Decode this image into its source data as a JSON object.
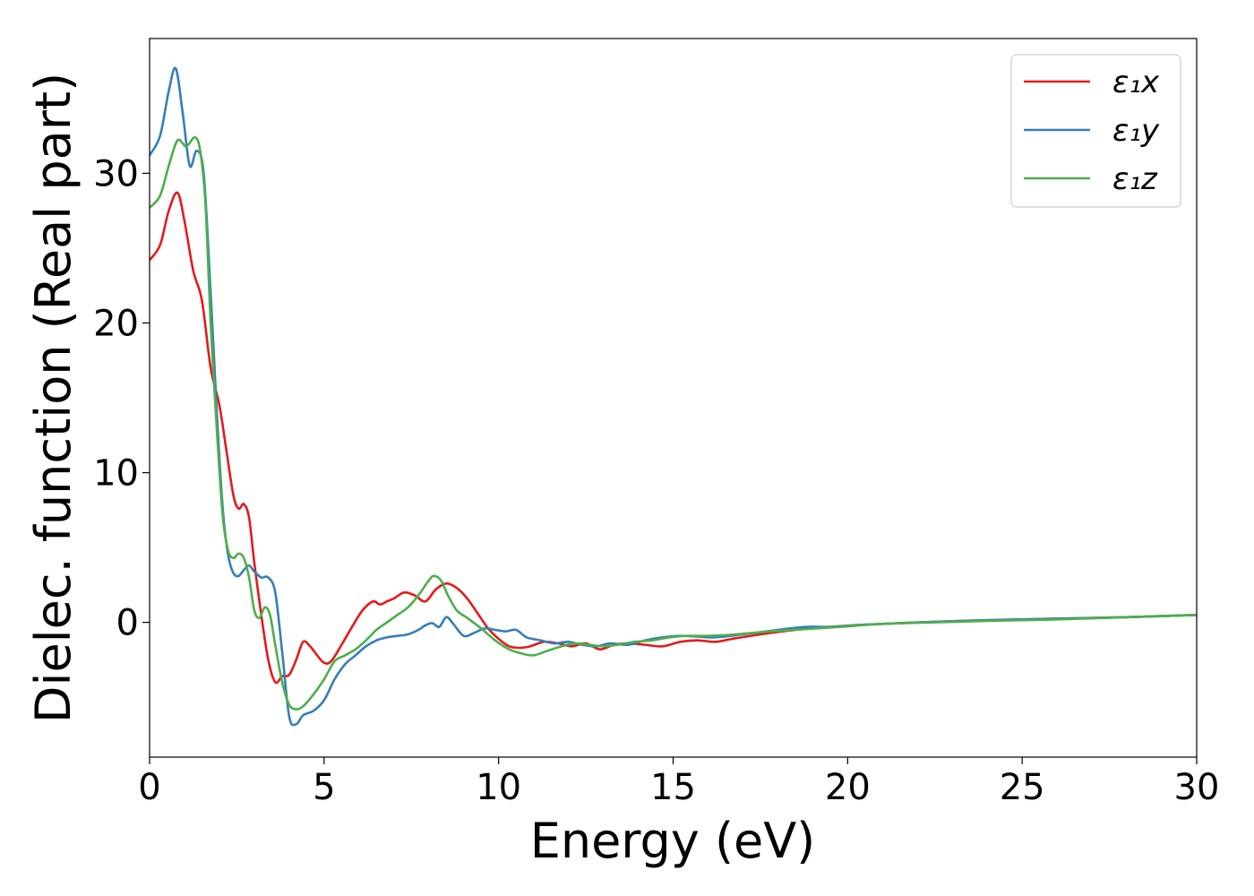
{
  "chart_data": {
    "type": "line",
    "xlabel": "Energy (eV)",
    "ylabel": "Dielec. function (Real part)",
    "xlim": [
      0,
      30
    ],
    "ylim": [
      -9,
      39
    ],
    "xticks": [
      "0",
      "5",
      "10",
      "15",
      "20",
      "25",
      "30"
    ],
    "yticks": [
      "0",
      "10",
      "20",
      "30"
    ],
    "grid": false,
    "legend_position": "top-right",
    "series": [
      {
        "name": "ε₁x",
        "color": "#e41a1c",
        "x": [
          0,
          0.3,
          0.55,
          0.8,
          1.0,
          1.25,
          1.5,
          1.75,
          2.0,
          2.2,
          2.4,
          2.55,
          2.7,
          2.85,
          3.0,
          3.2,
          3.4,
          3.6,
          3.8,
          4.0,
          4.2,
          4.4,
          4.6,
          4.8,
          5.0,
          5.2,
          5.5,
          5.8,
          6.1,
          6.4,
          6.6,
          6.8,
          7.0,
          7.3,
          7.6,
          7.9,
          8.2,
          8.5,
          8.8,
          9.1,
          9.4,
          9.7,
          10.0,
          10.3,
          10.6,
          10.9,
          11.3,
          11.7,
          12.1,
          12.5,
          12.9,
          13.3,
          13.7,
          14.2,
          14.7,
          15.2,
          15.7,
          16.2,
          16.7,
          17.5,
          18.5,
          19.5,
          20.5,
          22,
          24,
          26,
          28,
          30
        ],
        "y": [
          24.2,
          25.2,
          27.5,
          28.7,
          26.8,
          23.5,
          21.5,
          17.0,
          14.5,
          11.5,
          8.5,
          7.6,
          7.9,
          7.0,
          4.0,
          0.5,
          -2.5,
          -4.0,
          -3.6,
          -3.5,
          -2.5,
          -1.3,
          -1.6,
          -2.2,
          -2.7,
          -2.6,
          -1.5,
          -0.3,
          0.8,
          1.4,
          1.2,
          1.4,
          1.6,
          2.0,
          1.8,
          1.4,
          2.2,
          2.6,
          2.3,
          1.6,
          0.6,
          -0.4,
          -1.1,
          -1.6,
          -1.7,
          -1.6,
          -1.3,
          -1.4,
          -1.6,
          -1.4,
          -1.8,
          -1.5,
          -1.4,
          -1.5,
          -1.6,
          -1.3,
          -1.2,
          -1.3,
          -1.1,
          -0.8,
          -0.5,
          -0.3,
          -0.15,
          0.0,
          0.15,
          0.25,
          0.35,
          0.5
        ]
      },
      {
        "name": "ε₁y",
        "color": "#377eb8",
        "x": [
          0,
          0.3,
          0.55,
          0.75,
          0.95,
          1.15,
          1.35,
          1.55,
          1.75,
          1.95,
          2.1,
          2.25,
          2.4,
          2.55,
          2.7,
          2.85,
          3.0,
          3.2,
          3.4,
          3.6,
          3.8,
          4.0,
          4.2,
          4.4,
          4.7,
          5.0,
          5.3,
          5.6,
          5.9,
          6.2,
          6.5,
          6.8,
          7.1,
          7.4,
          7.7,
          7.9,
          8.1,
          8.3,
          8.5,
          8.7,
          9.0,
          9.3,
          9.6,
          9.9,
          10.2,
          10.5,
          10.8,
          11.2,
          11.6,
          12.0,
          12.4,
          12.8,
          13.2,
          13.7,
          14.2,
          14.7,
          15.2,
          15.7,
          16.2,
          17.0,
          18.0,
          18.8,
          19.5,
          20.5,
          22,
          24,
          26,
          28,
          30
        ],
        "y": [
          31.2,
          32.5,
          35.5,
          37.0,
          34.0,
          30.5,
          31.5,
          30.0,
          22.0,
          13.0,
          7.5,
          4.5,
          3.3,
          3.1,
          3.5,
          3.8,
          3.4,
          3.0,
          3.0,
          2.0,
          -2.0,
          -6.3,
          -6.8,
          -6.2,
          -5.9,
          -5.2,
          -3.8,
          -2.8,
          -2.2,
          -1.6,
          -1.2,
          -1.0,
          -0.9,
          -0.8,
          -0.5,
          -0.2,
          -0.05,
          -0.3,
          0.35,
          -0.1,
          -0.9,
          -0.7,
          -0.4,
          -0.5,
          -0.6,
          -0.5,
          -1.0,
          -1.2,
          -1.4,
          -1.3,
          -1.5,
          -1.6,
          -1.4,
          -1.5,
          -1.2,
          -1.0,
          -0.9,
          -0.95,
          -1.0,
          -0.8,
          -0.5,
          -0.3,
          -0.3,
          -0.15,
          0.0,
          0.15,
          0.25,
          0.35,
          0.5
        ]
      },
      {
        "name": "ε₁z",
        "color": "#4daf4a",
        "x": [
          0,
          0.3,
          0.55,
          0.8,
          1.05,
          1.3,
          1.45,
          1.6,
          1.75,
          1.95,
          2.1,
          2.25,
          2.4,
          2.55,
          2.7,
          2.85,
          3.0,
          3.15,
          3.3,
          3.45,
          3.6,
          3.8,
          4.0,
          4.2,
          4.4,
          4.7,
          5.0,
          5.3,
          5.6,
          5.9,
          6.2,
          6.5,
          6.8,
          7.1,
          7.4,
          7.7,
          8.0,
          8.15,
          8.35,
          8.55,
          8.8,
          9.1,
          9.5,
          9.9,
          10.3,
          10.7,
          11.0,
          11.4,
          11.8,
          12.2,
          12.6,
          13.0,
          13.4,
          13.9,
          14.4,
          14.9,
          15.4,
          16.0,
          16.8,
          17.8,
          18.8,
          19.8,
          21,
          22.5,
          24,
          26,
          28,
          30
        ],
        "y": [
          27.7,
          28.5,
          30.5,
          32.2,
          31.8,
          32.4,
          31.5,
          28.0,
          20.0,
          12.0,
          7.0,
          4.8,
          4.3,
          4.6,
          4.3,
          3.0,
          0.8,
          0.3,
          1.0,
          0.5,
          -1.5,
          -4.0,
          -5.5,
          -5.8,
          -5.6,
          -4.8,
          -3.8,
          -2.6,
          -2.2,
          -1.8,
          -1.2,
          -0.5,
          0.0,
          0.5,
          1.0,
          1.8,
          2.8,
          3.1,
          2.8,
          1.8,
          0.8,
          0.3,
          -0.4,
          -1.2,
          -1.8,
          -2.1,
          -2.2,
          -1.9,
          -1.6,
          -1.4,
          -1.5,
          -1.6,
          -1.5,
          -1.3,
          -1.2,
          -1.0,
          -0.9,
          -0.9,
          -0.8,
          -0.6,
          -0.45,
          -0.3,
          -0.1,
          0.0,
          0.1,
          0.2,
          0.35,
          0.5
        ]
      }
    ]
  }
}
